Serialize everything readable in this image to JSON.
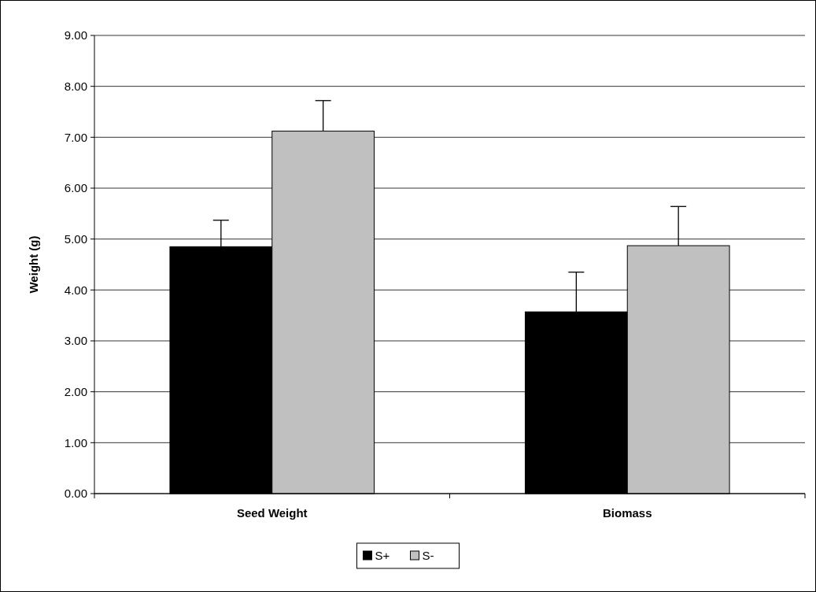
{
  "chart_data": {
    "type": "bar",
    "ylabel": "Weight (g)",
    "categories": [
      "Seed Weight",
      "Biomass"
    ],
    "series": [
      {
        "name": "S+",
        "color": "#000000",
        "values": [
          4.85,
          3.57
        ],
        "errors": [
          [
            4.85,
            5.37
          ],
          [
            3.57,
            4.35
          ]
        ]
      },
      {
        "name": "S-",
        "color": "#c0c0c0",
        "values": [
          7.12,
          4.87
        ],
        "errors": [
          [
            7.12,
            7.72
          ],
          [
            4.87,
            5.64
          ]
        ]
      }
    ],
    "ylim": [
      0,
      9
    ],
    "yticks": [
      {
        "value": 0,
        "label": "0.00"
      },
      {
        "value": 1,
        "label": "1.00"
      },
      {
        "value": 2,
        "label": "2.00"
      },
      {
        "value": 3,
        "label": "3.00"
      },
      {
        "value": 4,
        "label": "4.00"
      },
      {
        "value": 5,
        "label": "5.00"
      },
      {
        "value": 6,
        "label": "6.00"
      },
      {
        "value": 7,
        "label": "7.00"
      },
      {
        "value": 8,
        "label": "8.00"
      },
      {
        "value": 9,
        "label": "9.00"
      }
    ],
    "grid": "y",
    "legend": "bottom"
  }
}
